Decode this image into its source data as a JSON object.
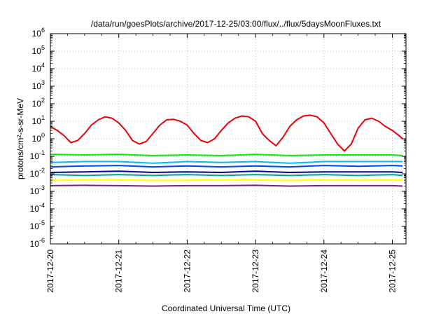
{
  "chart_data": {
    "type": "line",
    "title": "/data/run/goesPlots/archive/2017-12-25/03:00/flux/../flux/5daysMoonFluxes.txt",
    "xlabel": "Coordinated Universal Time (UTC)",
    "ylabel": "protons/cm²-s-sr-MeV",
    "yscale": "log",
    "ylim": [
      1e-06,
      1000000.0
    ],
    "xlim": [
      0,
      5.2
    ],
    "x_ticks": [
      "2017-12-20",
      "2017-12-21",
      "2017-12-22",
      "2017-12-23",
      "2017-12-24",
      "2017-12-25"
    ],
    "y_ticks": [
      "10^-6",
      "10^-5",
      "10^-4",
      "10^-3",
      "10^-2",
      "10^-1",
      "10^0",
      "10^1",
      "10^2",
      "10^3",
      "10^4",
      "10^5",
      "10^6"
    ],
    "grid": true,
    "series": [
      {
        "color": "#ee0000",
        "x": [
          0,
          0.1,
          0.2,
          0.3,
          0.4,
          0.5,
          0.6,
          0.7,
          0.8,
          0.9,
          1.0,
          1.1,
          1.2,
          1.3,
          1.4,
          1.5,
          1.6,
          1.7,
          1.8,
          1.9,
          2.0,
          2.1,
          2.2,
          2.3,
          2.4,
          2.5,
          2.6,
          2.7,
          2.8,
          2.9,
          3.0,
          3.1,
          3.2,
          3.3,
          3.4,
          3.5,
          3.6,
          3.7,
          3.8,
          3.9,
          4.0,
          4.1,
          4.2,
          4.3,
          4.4,
          4.5,
          4.6,
          4.7,
          4.8,
          4.9,
          5.0,
          5.1,
          5.15
        ],
        "y": [
          5,
          3,
          1.5,
          0.6,
          0.8,
          2,
          6,
          12,
          18,
          15,
          8,
          3,
          0.8,
          0.5,
          0.7,
          2,
          6,
          12,
          13,
          10,
          6,
          2,
          0.8,
          0.6,
          1,
          3,
          8,
          15,
          20,
          18,
          10,
          2,
          0.8,
          0.4,
          1.2,
          5,
          12,
          20,
          22,
          18,
          8,
          2,
          0.5,
          0.2,
          0.5,
          4,
          12,
          15,
          10,
          5,
          3,
          1.5,
          1
        ]
      },
      {
        "color": "#00ee00",
        "x": [
          0,
          0.5,
          1.0,
          1.5,
          2.0,
          2.5,
          3.0,
          3.5,
          4.0,
          4.5,
          5.0,
          5.15
        ],
        "y": [
          0.13,
          0.12,
          0.13,
          0.11,
          0.12,
          0.11,
          0.13,
          0.11,
          0.12,
          0.12,
          0.12,
          0.11
        ]
      },
      {
        "color": "#00bbee",
        "x": [
          0,
          0.5,
          1.0,
          1.5,
          2.0,
          2.5,
          3.0,
          3.5,
          4.0,
          4.5,
          5.0,
          5.15
        ],
        "y": [
          0.045,
          0.05,
          0.05,
          0.04,
          0.05,
          0.045,
          0.05,
          0.04,
          0.05,
          0.05,
          0.05,
          0.05
        ]
      },
      {
        "color": "#0044ff",
        "x": [
          0,
          0.5,
          1.0,
          1.5,
          2.0,
          2.5,
          3.0,
          3.5,
          4.0,
          4.5,
          5.0,
          5.15
        ],
        "y": [
          0.025,
          0.028,
          0.03,
          0.025,
          0.028,
          0.025,
          0.028,
          0.025,
          0.03,
          0.027,
          0.03,
          0.028
        ]
      },
      {
        "color": "#00008b",
        "x": [
          0,
          0.5,
          1.0,
          1.5,
          2.0,
          2.5,
          3.0,
          3.5,
          4.0,
          4.5,
          5.0,
          5.15
        ],
        "y": [
          0.012,
          0.013,
          0.014,
          0.012,
          0.013,
          0.012,
          0.014,
          0.012,
          0.013,
          0.013,
          0.013,
          0.012
        ]
      },
      {
        "color": "#00aa88",
        "x": [
          0,
          0.5,
          1.0,
          1.5,
          2.0,
          2.5,
          3.0,
          3.5,
          4.0,
          4.5,
          5.0,
          5.15
        ],
        "y": [
          0.009,
          0.008,
          0.009,
          0.008,
          0.009,
          0.008,
          0.009,
          0.008,
          0.009,
          0.008,
          0.009,
          0.008
        ]
      },
      {
        "color": "#ffff00",
        "x": [
          0,
          0.5,
          1.0,
          1.5,
          2.0,
          2.5,
          3.0,
          3.5,
          4.0,
          4.5,
          5.0,
          5.15
        ],
        "y": [
          0.0042,
          0.0045,
          0.0045,
          0.0042,
          0.0043,
          0.0045,
          0.0044,
          0.0042,
          0.0045,
          0.0043,
          0.0044,
          0.0043
        ]
      },
      {
        "color": "#772277",
        "x": [
          0,
          0.5,
          1.0,
          1.5,
          2.0,
          2.5,
          3.0,
          3.5,
          4.0,
          4.5,
          5.0,
          5.15
        ],
        "y": [
          0.0021,
          0.0022,
          0.0021,
          0.002,
          0.0021,
          0.0021,
          0.0022,
          0.002,
          0.0021,
          0.0021,
          0.0021,
          0.002
        ]
      }
    ]
  }
}
